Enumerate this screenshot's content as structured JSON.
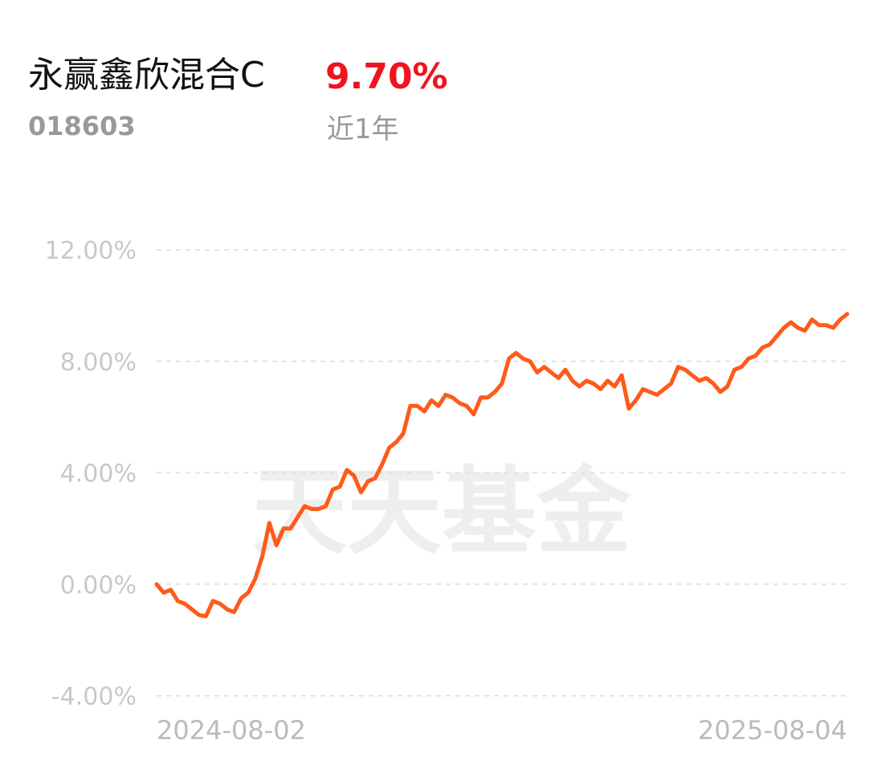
{
  "header": {
    "title": "永赢鑫欣混合C",
    "code": "018603",
    "return": "9.70%",
    "period": "近1年"
  },
  "watermark": "天天基金",
  "chart_data": {
    "type": "line",
    "color": "#ff5a1a",
    "grid": true,
    "categories": [
      "2024-08-02",
      null,
      null,
      null,
      null,
      null,
      null,
      null,
      null,
      null,
      null,
      null,
      null,
      null,
      null,
      null,
      null,
      null,
      null,
      null,
      null,
      null,
      null,
      null,
      null,
      null,
      null,
      null,
      null,
      null,
      null,
      null,
      null,
      null,
      null,
      null,
      null,
      null,
      null,
      null,
      null,
      null,
      null,
      null,
      null,
      null,
      null,
      null,
      null,
      null,
      null,
      null,
      null,
      null,
      null,
      null,
      null,
      null,
      null,
      null,
      null,
      null,
      null,
      null,
      null,
      null,
      null,
      null,
      null,
      null,
      null,
      null,
      null,
      null,
      null,
      null,
      null,
      null,
      null,
      null,
      null,
      null,
      null,
      null,
      null,
      null,
      null,
      null,
      null,
      null,
      null,
      null,
      null,
      null,
      null,
      null,
      null,
      null,
      "2025-08-04"
    ],
    "values": [
      0.0,
      -0.3,
      -0.2,
      -0.6,
      -0.7,
      -0.9,
      -1.1,
      -1.15,
      -0.6,
      -0.7,
      -0.9,
      -1.0,
      -0.5,
      -0.3,
      0.2,
      1.0,
      2.2,
      1.4,
      2.0,
      2.0,
      2.4,
      2.8,
      2.7,
      2.7,
      2.8,
      3.4,
      3.5,
      4.1,
      3.9,
      3.3,
      3.7,
      3.8,
      4.3,
      4.9,
      5.1,
      5.4,
      6.4,
      6.4,
      6.2,
      6.6,
      6.4,
      6.8,
      6.7,
      6.5,
      6.4,
      6.1,
      6.7,
      6.7,
      6.9,
      7.2,
      8.1,
      8.3,
      8.1,
      8.0,
      7.6,
      7.8,
      7.6,
      7.4,
      7.7,
      7.3,
      7.1,
      7.3,
      7.2,
      7.0,
      7.3,
      7.1,
      7.5,
      6.3,
      6.6,
      7.0,
      6.9,
      6.8,
      7.0,
      7.2,
      7.8,
      7.7,
      7.5,
      7.3,
      7.4,
      7.2,
      6.9,
      7.1,
      7.7,
      7.8,
      8.1,
      8.2,
      8.5,
      8.6,
      8.9,
      9.2,
      9.4,
      9.2,
      9.1,
      9.5,
      9.3,
      9.3,
      9.2,
      9.5,
      9.7
    ],
    "ylim": [
      -4,
      12
    ],
    "yticks": [
      {
        "value": -4,
        "label": "-4.00%"
      },
      {
        "value": 0,
        "label": "0.00%"
      },
      {
        "value": 4,
        "label": "4.00%"
      },
      {
        "value": 8,
        "label": "8.00%"
      },
      {
        "value": 12,
        "label": "12.00%"
      }
    ]
  }
}
